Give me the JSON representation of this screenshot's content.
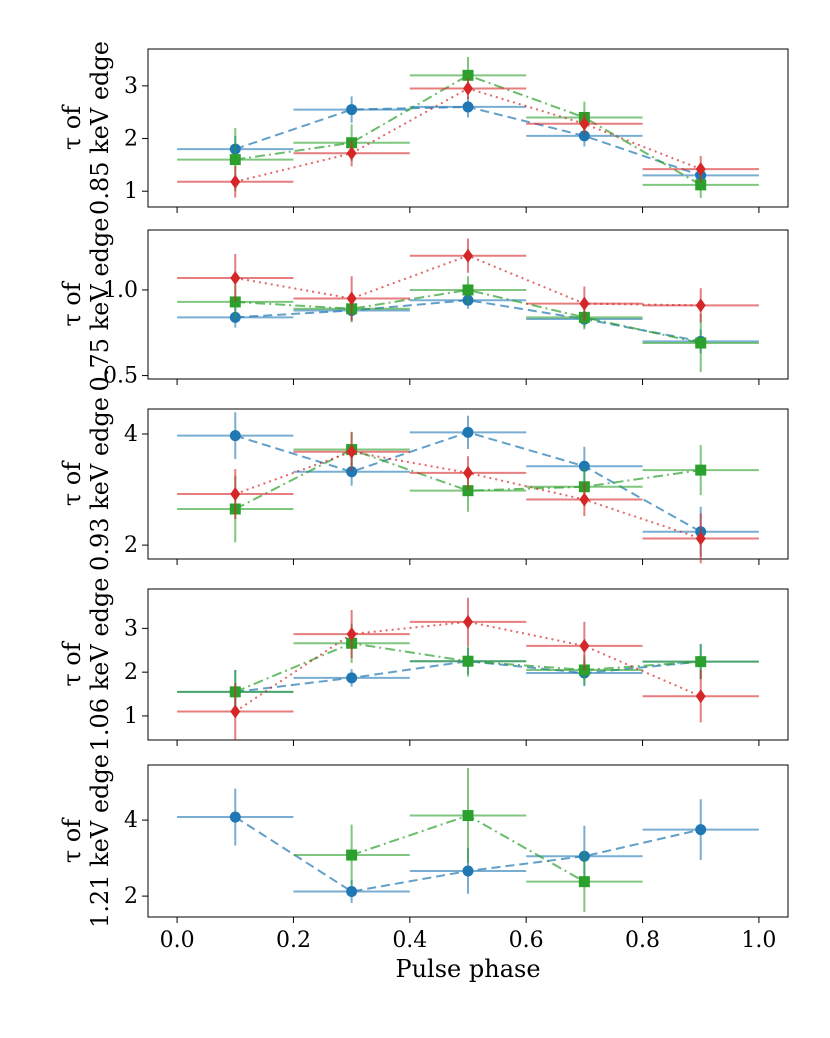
{
  "chart_data": {
    "type": "scatter",
    "xlabel": "Pulse phase",
    "xlim": [
      -0.05,
      1.05
    ],
    "xticks": [
      0.0,
      0.2,
      0.4,
      0.6,
      0.8,
      1.0
    ],
    "xtick_labels": [
      "0.0",
      "0.2",
      "0.4",
      "0.6",
      "0.8",
      "1.0"
    ],
    "x_halfwidth": 0.1,
    "series_styles": [
      {
        "name": "blue",
        "color": "#1f77b4",
        "marker": "circle",
        "line": "dashed"
      },
      {
        "name": "green",
        "color": "#2ca02c",
        "marker": "square",
        "line": "dashdot"
      },
      {
        "name": "red",
        "color": "#d62728",
        "marker": "diamond",
        "line": "dotted"
      }
    ],
    "panels": [
      {
        "ylabel_line1": "τ of",
        "ylabel_line2": "0.85 keV edge",
        "ylim": [
          0.7,
          3.7
        ],
        "yticks": [
          1,
          2,
          3
        ],
        "ytick_labels": [
          "1",
          "2",
          "3"
        ],
        "series": [
          {
            "name": "blue",
            "x": [
              0.1,
              0.3,
              0.5,
              0.7,
              0.9
            ],
            "y": [
              1.8,
              2.55,
              2.6,
              2.05,
              1.3
            ],
            "err": [
              0.25,
              0.25,
              0.2,
              0.2,
              0.15
            ]
          },
          {
            "name": "green",
            "x": [
              0.1,
              0.3,
              0.5,
              0.7,
              0.9
            ],
            "y": [
              1.6,
              1.92,
              3.2,
              2.4,
              1.12
            ],
            "err": [
              0.6,
              0.35,
              0.35,
              0.3,
              0.25
            ]
          },
          {
            "name": "red",
            "x": [
              0.1,
              0.3,
              0.5,
              0.7,
              0.9
            ],
            "y": [
              1.18,
              1.72,
              2.95,
              2.28,
              1.42
            ],
            "err": [
              0.3,
              0.25,
              0.2,
              0.2,
              0.25
            ]
          }
        ]
      },
      {
        "ylabel_line1": "τ of",
        "ylabel_line2": "0.75 keV edge",
        "ylim": [
          0.48,
          1.35
        ],
        "yticks": [
          0.5,
          1.0
        ],
        "ytick_labels": [
          "0.5",
          "1.0"
        ],
        "series": [
          {
            "name": "blue",
            "x": [
              0.1,
              0.3,
              0.5,
              0.7,
              0.9
            ],
            "y": [
              0.84,
              0.88,
              0.94,
              0.83,
              0.7
            ],
            "err": [
              0.06,
              0.06,
              0.05,
              0.05,
              0.07
            ]
          },
          {
            "name": "green",
            "x": [
              0.1,
              0.3,
              0.5,
              0.7,
              0.9
            ],
            "y": [
              0.93,
              0.89,
              1.0,
              0.84,
              0.69
            ],
            "err": [
              0.1,
              0.08,
              0.08,
              0.07,
              0.17
            ]
          },
          {
            "name": "red",
            "x": [
              0.1,
              0.3,
              0.5,
              0.7,
              0.9
            ],
            "y": [
              1.07,
              0.95,
              1.2,
              0.92,
              0.91
            ],
            "err": [
              0.14,
              0.13,
              0.1,
              0.1,
              0.1
            ]
          }
        ]
      },
      {
        "ylabel_line1": "τ of",
        "ylabel_line2": "0.93 keV edge",
        "ylim": [
          1.75,
          4.45
        ],
        "yticks": [
          2,
          4
        ],
        "ytick_labels": [
          "2",
          "4"
        ],
        "series": [
          {
            "name": "blue",
            "x": [
              0.1,
              0.3,
              0.5,
              0.7,
              0.9
            ],
            "y": [
              3.97,
              3.32,
              4.03,
              3.42,
              2.24
            ],
            "err": [
              0.42,
              0.25,
              0.3,
              0.35,
              0.45
            ]
          },
          {
            "name": "green",
            "x": [
              0.1,
              0.3,
              0.5,
              0.7,
              0.9
            ],
            "y": [
              2.65,
              3.72,
              2.98,
              3.05,
              3.35
            ],
            "err": [
              0.6,
              0.32,
              0.38,
              0.35,
              0.45
            ]
          },
          {
            "name": "red",
            "x": [
              0.1,
              0.3,
              0.5,
              0.7,
              0.9
            ],
            "y": [
              2.92,
              3.68,
              3.3,
              2.82,
              2.12
            ],
            "err": [
              0.45,
              0.35,
              0.3,
              0.3,
              0.45
            ]
          }
        ]
      },
      {
        "ylabel_line1": "τ of",
        "ylabel_line2": "1.06 keV edge",
        "ylim": [
          0.45,
          3.9
        ],
        "yticks": [
          1,
          2,
          3
        ],
        "ytick_labels": [
          "1",
          "2",
          "3"
        ],
        "series": [
          {
            "name": "blue",
            "x": [
              0.1,
              0.3,
              0.5,
              0.7,
              0.9
            ],
            "y": [
              1.55,
              1.87,
              2.25,
              1.98,
              2.24
            ],
            "err": [
              0.5,
              0.2,
              0.3,
              0.3,
              0.4
            ]
          },
          {
            "name": "green",
            "x": [
              0.1,
              0.3,
              0.5,
              0.7,
              0.9
            ],
            "y": [
              1.55,
              2.66,
              2.25,
              2.05,
              2.24
            ],
            "err": [
              0.5,
              0.45,
              0.35,
              0.35,
              0.4
            ]
          },
          {
            "name": "red",
            "x": [
              0.1,
              0.3,
              0.5,
              0.7,
              0.9
            ],
            "y": [
              1.1,
              2.87,
              3.15,
              2.6,
              1.45
            ],
            "err": [
              0.65,
              0.55,
              0.55,
              0.55,
              0.6
            ]
          }
        ]
      },
      {
        "ylabel_line1": "τ of",
        "ylabel_line2": "1.21 keV edge",
        "ylim": [
          1.45,
          5.45
        ],
        "yticks": [
          2,
          4
        ],
        "ytick_labels": [
          "2",
          "4"
        ],
        "series": [
          {
            "name": "blue",
            "x": [
              0.1,
              0.3,
              0.5,
              0.7,
              0.9
            ],
            "y": [
              4.08,
              2.12,
              2.66,
              3.05,
              3.75
            ],
            "err": [
              0.75,
              0.3,
              0.6,
              0.8,
              0.8
            ]
          },
          {
            "name": "green",
            "x": [
              0.3,
              0.5,
              0.7
            ],
            "y": [
              3.08,
              4.12,
              2.38
            ],
            "err": [
              0.8,
              1.25,
              0.8
            ]
          }
        ]
      }
    ]
  }
}
